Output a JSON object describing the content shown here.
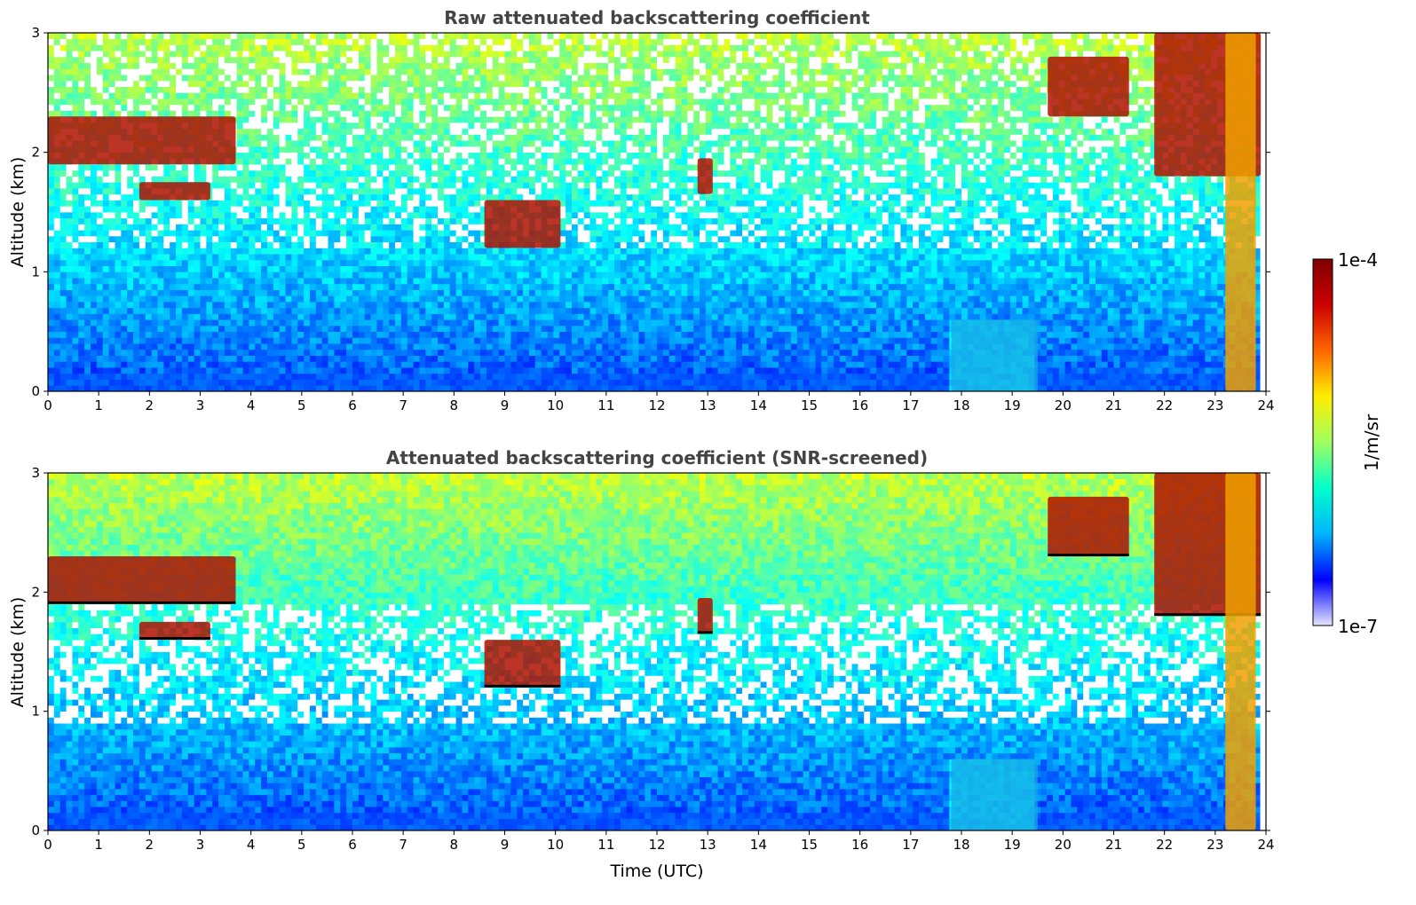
{
  "chart_data": [
    {
      "type": "heatmap",
      "title": "Raw attenuated backscattering coefficient",
      "xlabel": "",
      "ylabel": "Altitude (km)",
      "xlim": [
        0,
        24
      ],
      "ylim": [
        0,
        3
      ],
      "x_ticks": [
        "0",
        "1",
        "2",
        "3",
        "4",
        "5",
        "6",
        "7",
        "8",
        "9",
        "10",
        "11",
        "12",
        "13",
        "14",
        "15",
        "16",
        "17",
        "18",
        "19",
        "20",
        "21",
        "22",
        "23",
        "24"
      ],
      "y_ticks": [
        "0",
        "1",
        "2",
        "3"
      ],
      "color_scale": "log",
      "value_range": [
        1e-07,
        0.0001
      ],
      "features": [
        {
          "kind": "cloud layer",
          "time_utc": [
            0,
            3.7
          ],
          "altitude_km": [
            1.9,
            2.3
          ]
        },
        {
          "kind": "cloud layer",
          "time_utc": [
            1.8,
            3.2
          ],
          "altitude_km": [
            1.6,
            1.75
          ]
        },
        {
          "kind": "cloud",
          "time_utc": [
            8.6,
            10.1
          ],
          "altitude_km": [
            1.2,
            1.6
          ]
        },
        {
          "kind": "cloud",
          "time_utc": [
            12.8,
            13.1
          ],
          "altitude_km": [
            1.65,
            1.95
          ]
        },
        {
          "kind": "cloud",
          "time_utc": [
            19.7,
            21.3
          ],
          "altitude_km": [
            2.3,
            2.8
          ]
        },
        {
          "kind": "cloud",
          "time_utc": [
            21.8,
            23.9
          ],
          "altitude_km": [
            1.8,
            3.0
          ]
        },
        {
          "kind": "boundary layer",
          "time_utc": [
            17.8,
            19.5
          ],
          "altitude_km": [
            0,
            0.6
          ]
        },
        {
          "kind": "precipitation",
          "time_utc": [
            23.2,
            23.8
          ],
          "altitude_km": [
            0,
            3.0
          ]
        }
      ]
    },
    {
      "type": "heatmap",
      "title": "Attenuated backscattering coefficient (SNR-screened)",
      "xlabel": "Time (UTC)",
      "ylabel": "Altitude (km)",
      "xlim": [
        0,
        24
      ],
      "ylim": [
        0,
        3
      ],
      "x_ticks": [
        "0",
        "1",
        "2",
        "3",
        "4",
        "5",
        "6",
        "7",
        "8",
        "9",
        "10",
        "11",
        "12",
        "13",
        "14",
        "15",
        "16",
        "17",
        "18",
        "19",
        "20",
        "21",
        "22",
        "23",
        "24"
      ],
      "y_ticks": [
        "0",
        "1",
        "2",
        "3"
      ],
      "color_scale": "log",
      "value_range": [
        1e-07,
        0.0001
      ],
      "masked_color": "#ffffff",
      "features": [
        {
          "kind": "cloud layer",
          "time_utc": [
            0,
            3.7
          ],
          "altitude_km": [
            1.9,
            2.3
          ]
        },
        {
          "kind": "cloud layer",
          "time_utc": [
            1.8,
            3.2
          ],
          "altitude_km": [
            1.6,
            1.75
          ]
        },
        {
          "kind": "cloud",
          "time_utc": [
            8.6,
            10.1
          ],
          "altitude_km": [
            1.2,
            1.6
          ]
        },
        {
          "kind": "cloud",
          "time_utc": [
            12.8,
            13.1
          ],
          "altitude_km": [
            1.65,
            1.95
          ]
        },
        {
          "kind": "cloud",
          "time_utc": [
            19.7,
            21.3
          ],
          "altitude_km": [
            2.3,
            2.8
          ]
        },
        {
          "kind": "cloud",
          "time_utc": [
            21.8,
            23.9
          ],
          "altitude_km": [
            1.8,
            3.0
          ]
        },
        {
          "kind": "boundary layer",
          "time_utc": [
            17.8,
            19.5
          ],
          "altitude_km": [
            0,
            0.6
          ]
        },
        {
          "kind": "precipitation",
          "time_utc": [
            23.2,
            23.8
          ],
          "altitude_km": [
            0,
            3.0
          ]
        }
      ]
    }
  ],
  "colorbar": {
    "label": "1/m/sr",
    "max_label": "1e-4",
    "min_label": "1e-7",
    "colormap": "jet",
    "colors": [
      "#e6e6ff",
      "#0000ff",
      "#00b4ff",
      "#00ffcc",
      "#a0ff60",
      "#ffee00",
      "#ff6600",
      "#cc0000",
      "#7f0000"
    ]
  }
}
